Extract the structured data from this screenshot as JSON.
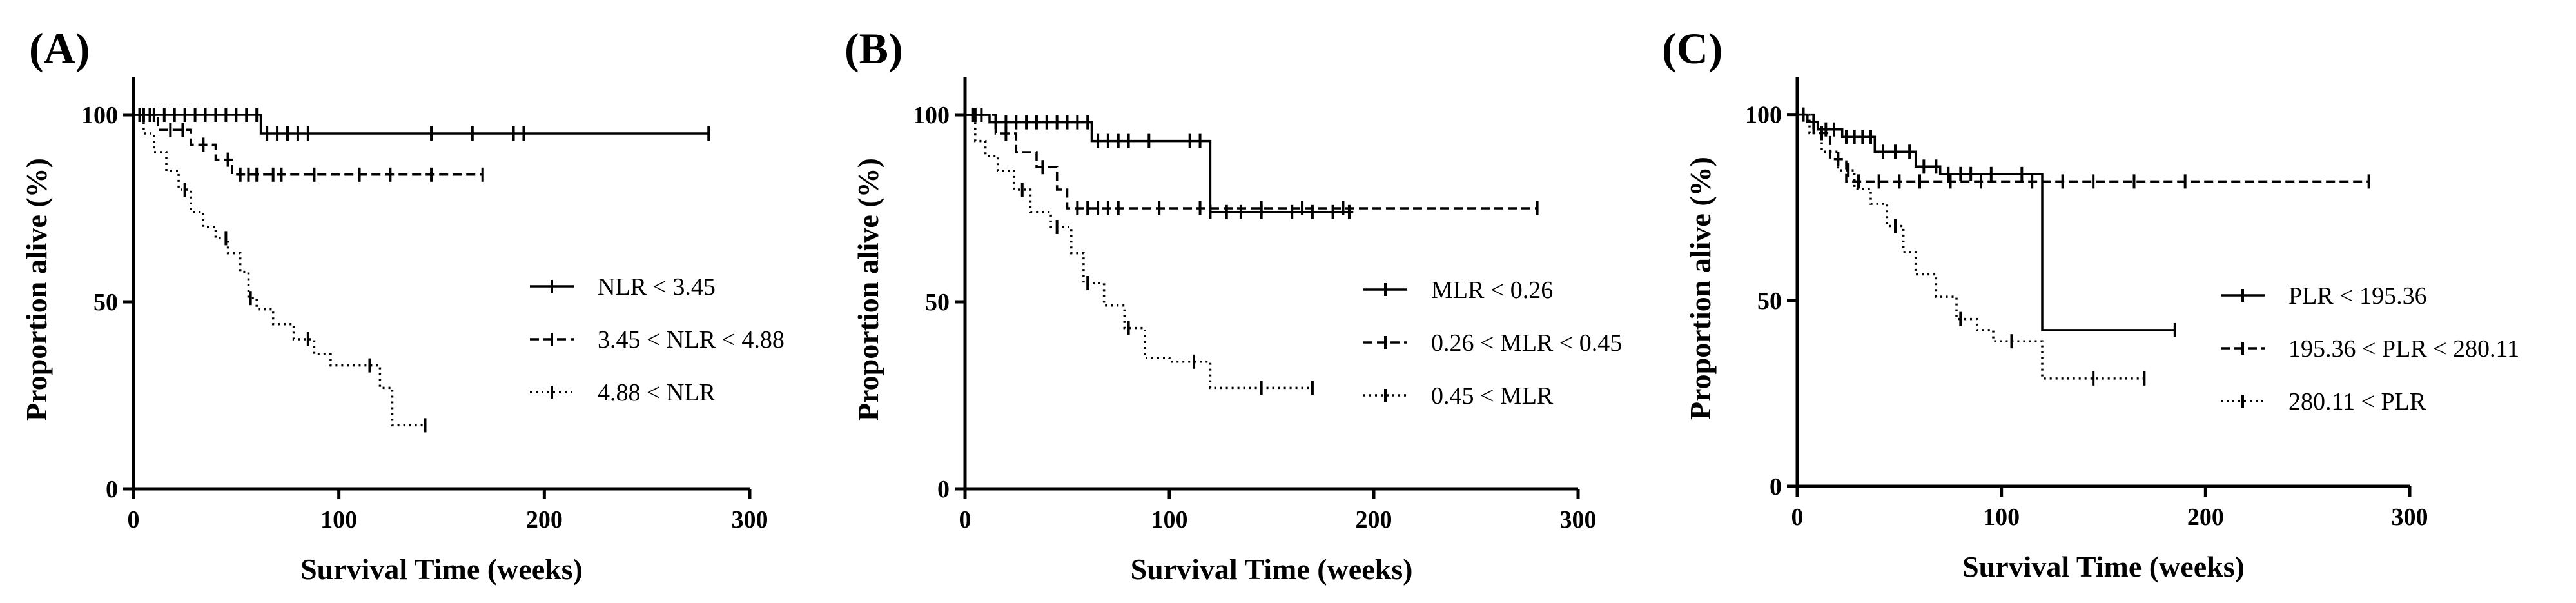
{
  "figure_colors": {
    "line": "#000000",
    "background": "#ffffff"
  },
  "chart_data": [
    {
      "type": "line",
      "subtype": "kaplan-meier",
      "panel_label": "(A)",
      "xlabel": "Survival Time (weeks)",
      "ylabel": "Proportion alive (%)",
      "xlim": [
        0,
        300
      ],
      "ylim": [
        0,
        110
      ],
      "xticks": [
        0,
        100,
        200,
        300
      ],
      "yticks": [
        0,
        50,
        100
      ],
      "legend_position": "center-right",
      "series": [
        {
          "name": "NLR < 3.45",
          "style": "solid",
          "x": [
            0,
            62,
            62,
            280
          ],
          "y": [
            100,
            100,
            95,
            95
          ],
          "censor_x": [
            5,
            10,
            15,
            20,
            25,
            30,
            35,
            40,
            45,
            50,
            55,
            60,
            65,
            70,
            75,
            80,
            85,
            145,
            165,
            185,
            190,
            280
          ]
        },
        {
          "name": "3.45 < NLR < 4.88",
          "style": "dashed",
          "x": [
            0,
            12,
            12,
            28,
            28,
            40,
            40,
            48,
            48,
            170
          ],
          "y": [
            100,
            100,
            96,
            96,
            92,
            92,
            88,
            88,
            84,
            84
          ],
          "censor_x": [
            3,
            8,
            18,
            24,
            34,
            46,
            52,
            56,
            60,
            68,
            72,
            88,
            110,
            125,
            145,
            170
          ]
        },
        {
          "name": "4.88 < NLR",
          "style": "dotted",
          "x": [
            0,
            5,
            5,
            10,
            10,
            16,
            16,
            22,
            22,
            28,
            28,
            34,
            34,
            40,
            40,
            46,
            46,
            52,
            52,
            56,
            56,
            60,
            60,
            68,
            68,
            78,
            78,
            88,
            88,
            96,
            96,
            120,
            120,
            126,
            126,
            142
          ],
          "y": [
            100,
            100,
            95,
            95,
            90,
            90,
            85,
            85,
            80,
            80,
            74,
            74,
            70,
            70,
            67,
            67,
            63,
            63,
            58,
            58,
            51,
            51,
            48,
            48,
            44,
            44,
            40,
            40,
            36,
            36,
            33,
            33,
            27,
            27,
            17,
            17
          ],
          "censor_x": [
            25,
            45,
            57,
            85,
            115,
            142
          ]
        }
      ]
    },
    {
      "type": "line",
      "subtype": "kaplan-meier",
      "panel_label": "(B)",
      "xlabel": "Survival Time (weeks)",
      "ylabel": "Proportion alive (%)",
      "xlim": [
        0,
        300
      ],
      "ylim": [
        0,
        110
      ],
      "xticks": [
        0,
        100,
        200,
        300
      ],
      "yticks": [
        0,
        50,
        100
      ],
      "legend_position": "center-right",
      "series": [
        {
          "name": "MLR < 0.26",
          "style": "solid",
          "x": [
            0,
            12,
            12,
            62,
            62,
            120,
            120,
            190
          ],
          "y": [
            100,
            100,
            98,
            98,
            93,
            93,
            74,
            74
          ],
          "censor_x": [
            4,
            8,
            15,
            20,
            25,
            30,
            35,
            40,
            45,
            50,
            55,
            60,
            65,
            70,
            75,
            80,
            90,
            110,
            115,
            120,
            128,
            135,
            145,
            160,
            170,
            180,
            188
          ]
        },
        {
          "name": "0.26 < MLR < 0.45",
          "style": "dashed",
          "x": [
            0,
            15,
            15,
            25,
            25,
            35,
            35,
            45,
            45,
            50,
            50,
            280
          ],
          "y": [
            100,
            100,
            95,
            95,
            90,
            90,
            86,
            86,
            80,
            80,
            75,
            75
          ],
          "censor_x": [
            5,
            20,
            38,
            55,
            60,
            65,
            70,
            75,
            95,
            115,
            145,
            165,
            185,
            280
          ]
        },
        {
          "name": "0.45 < MLR",
          "style": "dotted",
          "x": [
            0,
            5,
            5,
            10,
            10,
            16,
            16,
            24,
            24,
            32,
            32,
            42,
            42,
            52,
            52,
            58,
            58,
            68,
            68,
            78,
            78,
            88,
            88,
            100,
            100,
            120,
            120,
            170
          ],
          "y": [
            100,
            100,
            93,
            93,
            89,
            89,
            85,
            85,
            80,
            80,
            74,
            74,
            70,
            70,
            63,
            63,
            55,
            55,
            49,
            49,
            43,
            43,
            35,
            35,
            34,
            34,
            27,
            27
          ],
          "censor_x": [
            28,
            45,
            60,
            80,
            112,
            145,
            170
          ]
        }
      ]
    },
    {
      "type": "line",
      "subtype": "kaplan-meier",
      "panel_label": "(C)",
      "xlabel": "Survival Time (weeks)",
      "ylabel": "Proportion alive (%)",
      "xlim": [
        0,
        300
      ],
      "ylim": [
        0,
        110
      ],
      "xticks": [
        0,
        100,
        200,
        300
      ],
      "yticks": [
        0,
        50,
        100
      ],
      "legend_position": "center-right",
      "series": [
        {
          "name": "PLR < 195.36",
          "style": "solid",
          "x": [
            0,
            5,
            5,
            10,
            10,
            22,
            22,
            38,
            38,
            58,
            58,
            70,
            70,
            120,
            120,
            185
          ],
          "y": [
            100,
            100,
            98,
            98,
            96,
            96,
            94,
            94,
            90,
            90,
            86,
            86,
            84,
            84,
            42,
            42
          ],
          "censor_x": [
            3,
            8,
            14,
            18,
            24,
            28,
            32,
            36,
            42,
            48,
            55,
            62,
            68,
            74,
            80,
            85,
            95,
            110,
            185
          ]
        },
        {
          "name": "195.36 < PLR < 280.11",
          "style": "dashed",
          "x": [
            0,
            8,
            8,
            16,
            16,
            24,
            24,
            280
          ],
          "y": [
            100,
            100,
            95,
            95,
            88,
            88,
            82,
            82
          ],
          "censor_x": [
            12,
            20,
            30,
            40,
            50,
            60,
            75,
            90,
            115,
            130,
            145,
            165,
            190,
            280
          ]
        },
        {
          "name": "280.11 < PLR",
          "style": "dotted",
          "x": [
            0,
            6,
            6,
            12,
            12,
            20,
            20,
            28,
            28,
            36,
            36,
            44,
            44,
            52,
            52,
            58,
            58,
            68,
            68,
            78,
            78,
            88,
            88,
            96,
            96,
            120,
            120,
            170
          ],
          "y": [
            100,
            100,
            95,
            95,
            90,
            90,
            85,
            85,
            80,
            80,
            76,
            76,
            70,
            70,
            63,
            63,
            57,
            57,
            51,
            51,
            45,
            45,
            42,
            42,
            39,
            39,
            29,
            29
          ],
          "censor_x": [
            25,
            48,
            80,
            105,
            145,
            170
          ]
        }
      ]
    }
  ]
}
